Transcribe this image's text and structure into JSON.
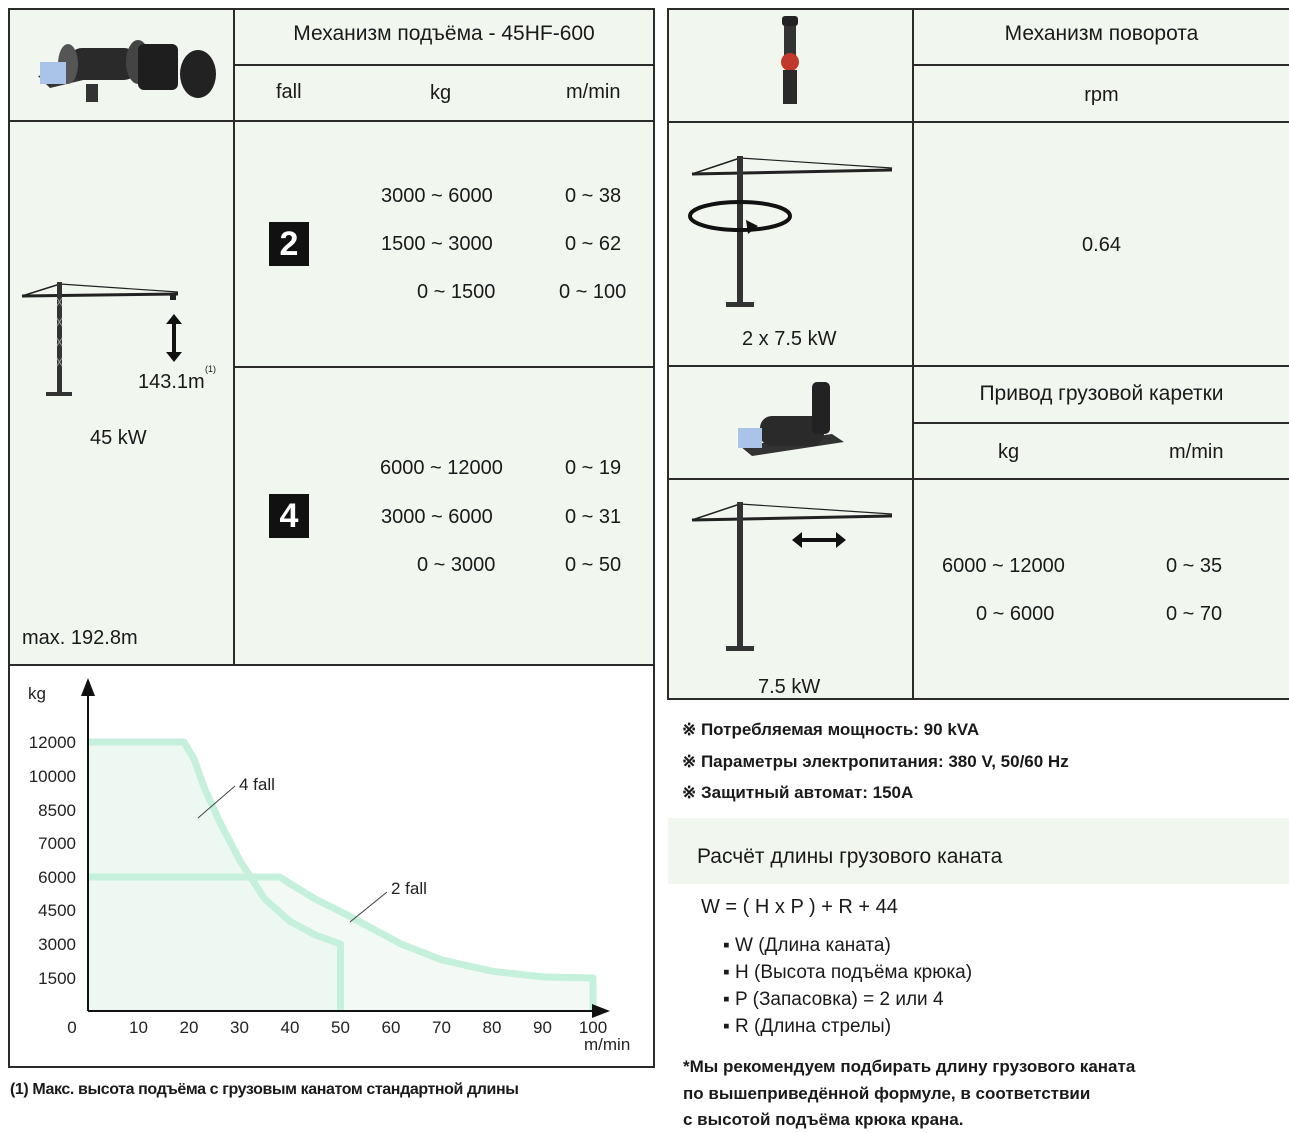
{
  "hoist": {
    "title": "Механизм подъёма - 45HF-600",
    "columns": [
      "fall",
      "kg",
      "m/min"
    ],
    "height_label": "143.1m",
    "height_footnote_mark": "(1)",
    "power": "45 kW",
    "max_height": "max. 192.8m",
    "groups": [
      {
        "fall": "2",
        "rows": [
          {
            "kg": "3000 ~ 6000",
            "speed": "0 ~ 38"
          },
          {
            "kg": "1500 ~ 3000",
            "speed": "0 ~ 62"
          },
          {
            "kg": "0 ~ 1500",
            "speed": "0 ~ 100"
          }
        ]
      },
      {
        "fall": "4",
        "rows": [
          {
            "kg": "6000 ~ 12000",
            "speed": "0 ~ 19"
          },
          {
            "kg": "3000 ~ 6000",
            "speed": "0 ~ 31"
          },
          {
            "kg": "0 ~ 3000",
            "speed": "0 ~ 50"
          }
        ]
      }
    ]
  },
  "slewing": {
    "title": "Механизм поворота",
    "unit": "rpm",
    "value": "0.64",
    "power": "2 x 7.5 kW"
  },
  "trolley": {
    "title": "Привод грузовой каретки",
    "columns": [
      "kg",
      "m/min"
    ],
    "rows": [
      {
        "kg": "6000 ~ 12000",
        "speed": "0 ~ 35"
      },
      {
        "kg": "0 ~ 6000",
        "speed": "0 ~ 70"
      }
    ],
    "power": "7.5 kW"
  },
  "notes": [
    "※  Потребляемая мощность: 90 kVA",
    "※  Параметры электропитания: 380 V, 50/60 Hz",
    "※  Защитный автомат: 150A"
  ],
  "rope": {
    "title": "Расчёт длины грузового каната",
    "formula": "W = ( H x P ) + R + 44",
    "items": [
      "W (Длина каната)",
      "H (Высота подъёма крюка)",
      "P (Запасовка) = 2 или 4",
      "R (Длина стрелы)"
    ],
    "recommendation": [
      "*Мы рекомендуем подбирать длину грузового каната",
      "по вышеприведённой формуле, в соответствии",
      "с высотой подъёма крюка крана."
    ]
  },
  "footnote": "(1) Макс. высота подъёма с грузовым канатом стандартной длины",
  "colors": {
    "panel_bg": "#f1f6ef",
    "curve": "#c4f0dc",
    "badge": "#111111"
  },
  "chart_data": {
    "type": "line",
    "ylabel": "kg",
    "xlabel": "m/min",
    "y_ticks": [
      12000,
      10000,
      8500,
      7000,
      6000,
      4500,
      3000,
      1500
    ],
    "x_ticks": [
      0,
      10,
      20,
      30,
      40,
      50,
      60,
      70,
      80,
      90,
      100
    ],
    "series": [
      {
        "name": "4 fall",
        "points": [
          [
            0,
            12000
          ],
          [
            19,
            12000
          ],
          [
            21,
            11000
          ],
          [
            23,
            9500
          ],
          [
            26,
            8000
          ],
          [
            30,
            6500
          ],
          [
            35,
            5000
          ],
          [
            40,
            4000
          ],
          [
            45,
            3400
          ],
          [
            50,
            3000
          ],
          [
            50,
            0
          ]
        ]
      },
      {
        "name": "2 fall",
        "points": [
          [
            0,
            6000
          ],
          [
            38,
            6000
          ],
          [
            40,
            5700
          ],
          [
            45,
            5000
          ],
          [
            52,
            4200
          ],
          [
            62,
            3000
          ],
          [
            70,
            2300
          ],
          [
            80,
            1800
          ],
          [
            90,
            1550
          ],
          [
            100,
            1500
          ],
          [
            100,
            0
          ]
        ]
      }
    ]
  }
}
